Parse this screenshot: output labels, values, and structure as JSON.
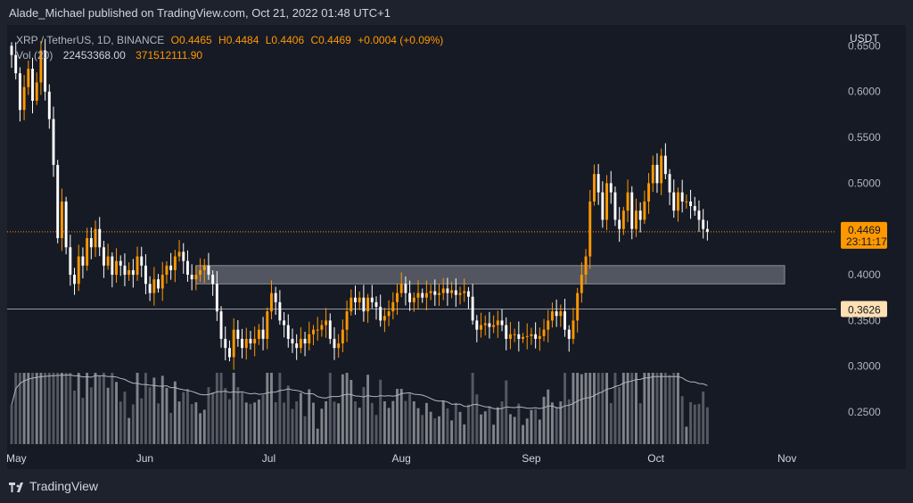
{
  "header": {
    "publisher": "Alade_Michael published on TradingView.com, Oct 21, 2022 01:48 UTC+1"
  },
  "legend": {
    "symbol": "XRP / TetherUS, 1D, BINANCE",
    "open": "O0.4465",
    "high": "H0.4484",
    "low": "L0.4406",
    "close": "C0.4469",
    "change": "+0.0004 (+0.09%)",
    "vol_label": "Vol (20)",
    "vol_value": "22453368.00",
    "vol_ma": "371512111.90"
  },
  "currency": "USDT",
  "price_badge": {
    "price": "0.4469",
    "countdown": "23:11:17"
  },
  "level_badge": {
    "price": "0.3626"
  },
  "footer": {
    "brand": "TradingView"
  },
  "colors": {
    "up": "#ff9800",
    "down": "#ffffff",
    "zone": "#686b75",
    "badge": "#ff9800",
    "level_badge": "#ffe0b2"
  },
  "chart_data": {
    "type": "candlestick",
    "y_ticks": [
      "0.6500",
      "0.6000",
      "0.5500",
      "0.5000",
      "0.4000",
      "0.3500",
      "0.3000",
      "0.2500"
    ],
    "x_ticks": [
      {
        "label": "May",
        "date": "2022-05-01"
      },
      {
        "label": "Jun",
        "date": "2022-06-01"
      },
      {
        "label": "Jul",
        "date": "2022-07-01"
      },
      {
        "label": "Aug",
        "date": "2022-08-01"
      },
      {
        "label": "Sep",
        "date": "2022-09-01"
      },
      {
        "label": "Oct",
        "date": "2022-10-01"
      },
      {
        "label": "Nov",
        "date": "2022-11-01"
      }
    ],
    "ylim": [
      0.215,
      0.665
    ],
    "resistance_zone": [
      0.39,
      0.41
    ],
    "horizontal_level": 0.3626,
    "last_price": 0.4469,
    "start_date": "2022-05-01",
    "closes": [
      0.64,
      0.62,
      0.58,
      0.605,
      0.625,
      0.59,
      0.61,
      0.645,
      0.6,
      0.57,
      0.52,
      0.44,
      0.48,
      0.43,
      0.4,
      0.39,
      0.42,
      0.41,
      0.44,
      0.43,
      0.45,
      0.43,
      0.41,
      0.42,
      0.4,
      0.415,
      0.41,
      0.4,
      0.405,
      0.4,
      0.42,
      0.41,
      0.39,
      0.38,
      0.395,
      0.385,
      0.4,
      0.41,
      0.405,
      0.42,
      0.425,
      0.415,
      0.4,
      0.395,
      0.4,
      0.405,
      0.41,
      0.4,
      0.39,
      0.36,
      0.33,
      0.32,
      0.31,
      0.34,
      0.33,
      0.32,
      0.33,
      0.325,
      0.33,
      0.34,
      0.33,
      0.36,
      0.38,
      0.37,
      0.35,
      0.345,
      0.33,
      0.325,
      0.32,
      0.33,
      0.325,
      0.335,
      0.34,
      0.34,
      0.345,
      0.35,
      0.33,
      0.32,
      0.325,
      0.34,
      0.36,
      0.375,
      0.37,
      0.375,
      0.36,
      0.375,
      0.37,
      0.365,
      0.35,
      0.355,
      0.36,
      0.37,
      0.38,
      0.39,
      0.38,
      0.37,
      0.375,
      0.38,
      0.375,
      0.38,
      0.382,
      0.378,
      0.38,
      0.385,
      0.38,
      0.383,
      0.378,
      0.38,
      0.382,
      0.376,
      0.35,
      0.34,
      0.345,
      0.347,
      0.343,
      0.345,
      0.35,
      0.345,
      0.33,
      0.335,
      0.335,
      0.33,
      0.332,
      0.333,
      0.335,
      0.33,
      0.333,
      0.34,
      0.35,
      0.36,
      0.355,
      0.36,
      0.34,
      0.33,
      0.35,
      0.38,
      0.4,
      0.42,
      0.48,
      0.51,
      0.49,
      0.46,
      0.5,
      0.49,
      0.46,
      0.45,
      0.47,
      0.49,
      0.45,
      0.47,
      0.46,
      0.48,
      0.5,
      0.52,
      0.5,
      0.53,
      0.51,
      0.49,
      0.47,
      0.49,
      0.48,
      0.48,
      0.475,
      0.47,
      0.46,
      0.45,
      0.447
    ]
  }
}
